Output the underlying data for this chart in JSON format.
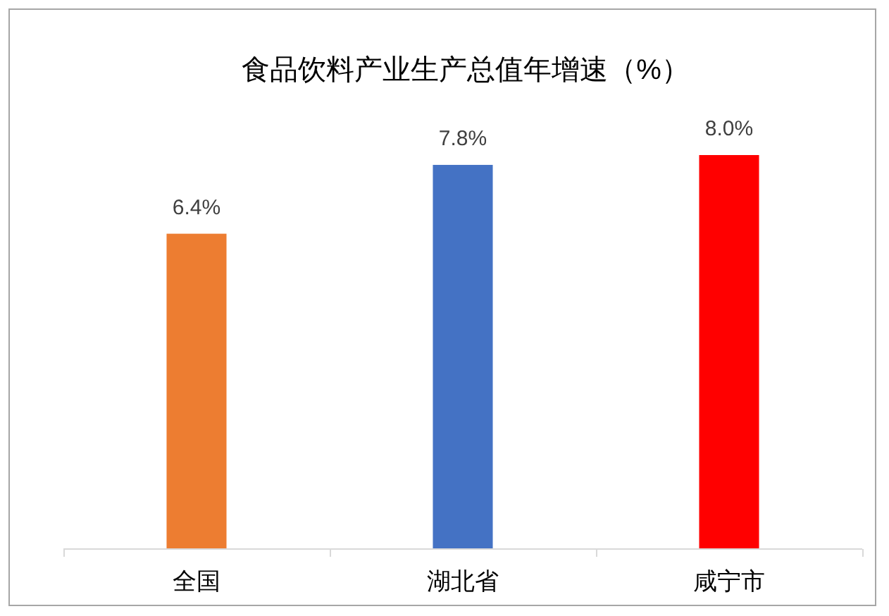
{
  "chart_data": {
    "type": "bar",
    "title": "食品饮料产业生产总值年增速（%）",
    "categories": [
      "全国",
      "湖北省",
      "咸宁市"
    ],
    "values": [
      6.4,
      7.8,
      8.0
    ],
    "value_labels": [
      "6.4%",
      "7.8%",
      "8.0%"
    ],
    "colors": [
      "#ED7D31",
      "#4472C4",
      "#FF0000"
    ],
    "tick_labels": "x"
  }
}
